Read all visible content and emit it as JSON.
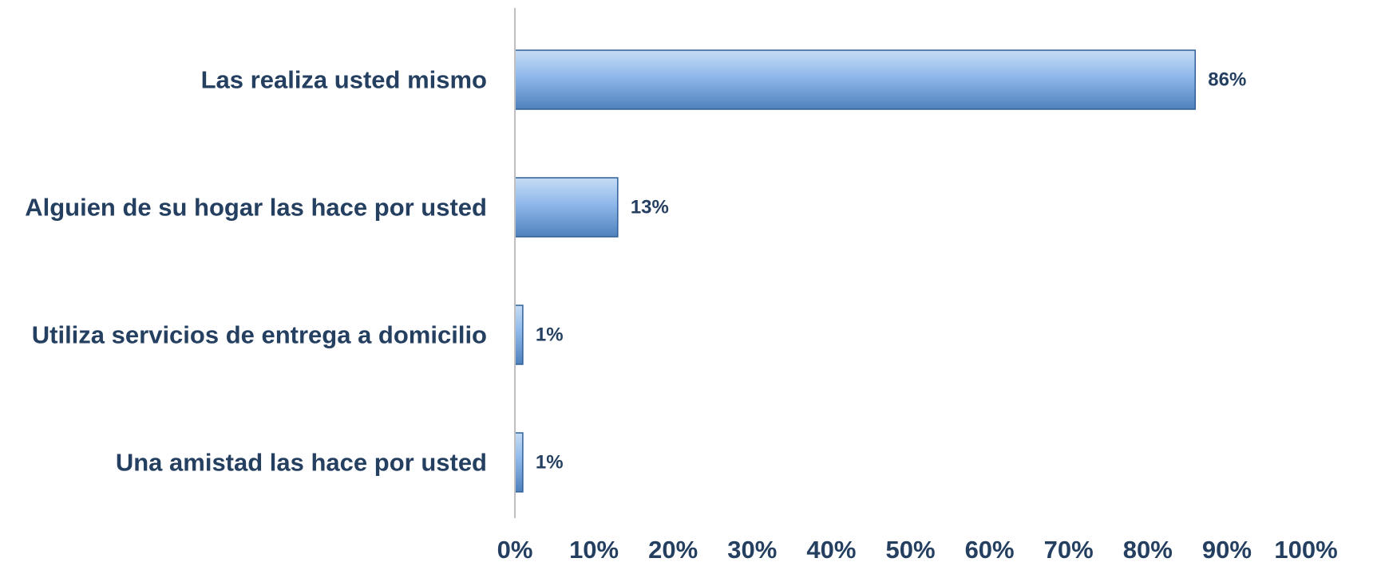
{
  "chart_data": {
    "type": "bar",
    "orientation": "horizontal",
    "categories": [
      "Las realiza usted mismo",
      "Alguien de su hogar las hace por usted",
      "Utiliza servicios de entrega a domicilio",
      "Una amistad las hace por usted"
    ],
    "values": [
      86,
      13,
      1,
      1
    ],
    "data_labels": [
      "86%",
      "13%",
      "1%",
      "1%"
    ],
    "title": "",
    "xlabel": "",
    "ylabel": "",
    "xlim": [
      0,
      100
    ],
    "x_ticks": [
      0,
      10,
      20,
      30,
      40,
      50,
      60,
      70,
      80,
      90,
      100
    ],
    "x_tick_labels": [
      "0%",
      "10%",
      "20%",
      "30%",
      "40%",
      "50%",
      "60%",
      "70%",
      "80%",
      "90%",
      "100%"
    ],
    "grid": false,
    "legend": "none",
    "colors": {
      "bar_top": "#c6dcf5",
      "bar_mid": "#8fb8ea",
      "bar_bottom": "#4f81bd",
      "bar_edge": "#2f5f99",
      "text": "#243f60",
      "axis": "#bfbfbf"
    }
  }
}
